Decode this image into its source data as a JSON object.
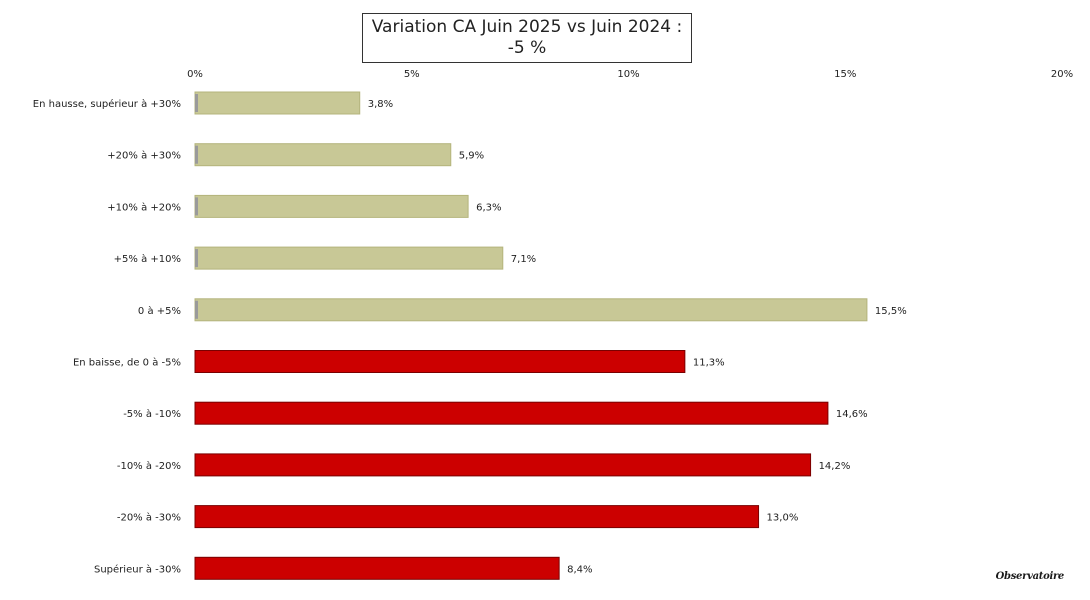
{
  "chart_data": {
    "type": "bar",
    "orientation": "horizontal",
    "title_lines": [
      "Variation CA Juin 2025 vs Juin 2024 :",
      "-5 %"
    ],
    "categories": [
      "En hausse, supérieur à +30%",
      "+20% à +30%",
      "+10% à +20%",
      "+5% à +10%",
      "0 à +5%",
      "En baisse, de 0 à -5%",
      "-5% à -10%",
      "-10% à -20%",
      "-20% à -30%",
      "Supérieur à -30%"
    ],
    "values": [
      3.8,
      5.9,
      6.3,
      7.1,
      15.5,
      11.3,
      14.6,
      14.2,
      13.0,
      8.4
    ],
    "value_labels": [
      "3,8%",
      "5,9%",
      "6,3%",
      "7,1%",
      "15,5%",
      "11,3%",
      "14,6%",
      "14,2%",
      "13,0%",
      "8,4%"
    ],
    "bar_colors": [
      "#c8c896",
      "#c8c896",
      "#c8c896",
      "#c8c896",
      "#c8c896",
      "#cc0000",
      "#cc0000",
      "#cc0000",
      "#cc0000",
      "#cc0000"
    ],
    "xlim": [
      0,
      20
    ],
    "x_ticks": [
      0,
      5,
      10,
      15,
      20
    ],
    "x_tick_labels": [
      "0%",
      "5%",
      "10%",
      "15%",
      "20%"
    ],
    "x_axis_position": "top",
    "grid": false,
    "legend": "none"
  },
  "watermark": "Observatoire"
}
